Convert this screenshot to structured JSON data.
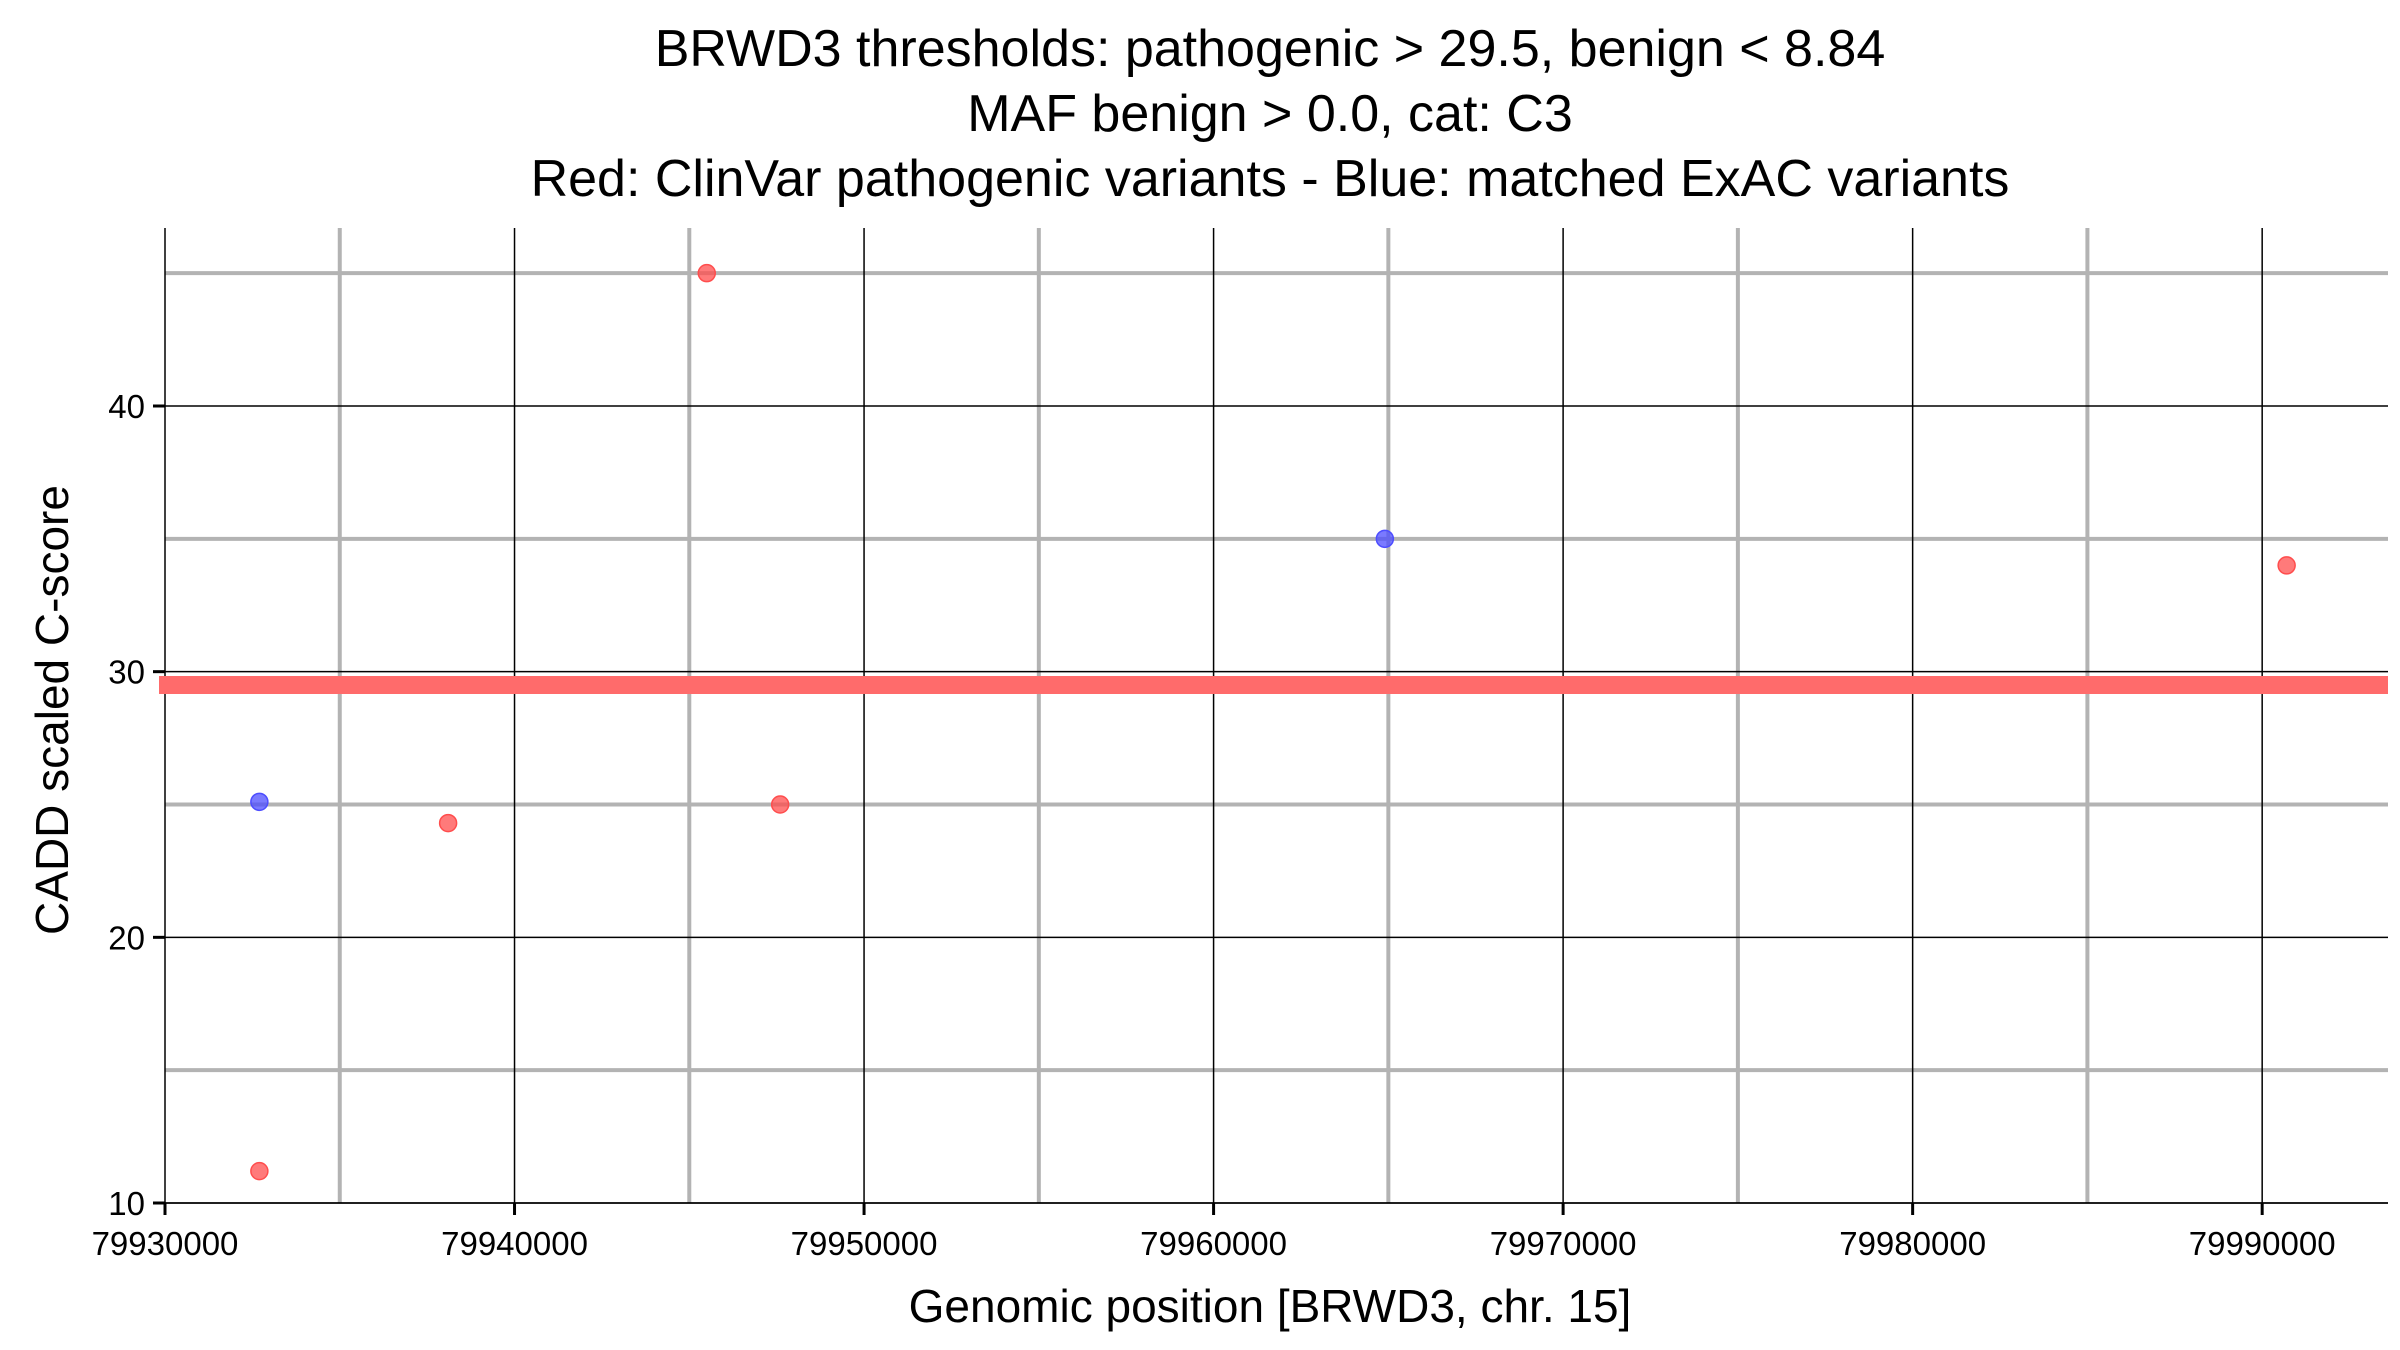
{
  "chart_data": {
    "type": "scatter",
    "title_lines": [
      "BRWD3 thresholds: pathogenic > 29.5, benign < 8.84",
      "MAF benign > 0.0, cat: C3",
      "Red: ClinVar pathogenic variants - Blue: matched ExAC variants"
    ],
    "xlabel": "Genomic position [BRWD3, chr. 15]",
    "ylabel": "CADD scaled C-score",
    "xlim": [
      79930000,
      79993600
    ],
    "ylim": [
      10,
      46.7
    ],
    "x_ticks": [
      79930000,
      79940000,
      79950000,
      79960000,
      79970000,
      79980000,
      79990000
    ],
    "x_tick_labels": [
      "79930000",
      "79940000",
      "79950000",
      "79960000",
      "79970000",
      "79980000",
      "79990000"
    ],
    "x_minor_ticks": [
      79935000,
      79945000,
      79955000,
      79965000,
      79975000,
      79985000
    ],
    "y_ticks": [
      10,
      20,
      30,
      40
    ],
    "y_tick_labels": [
      "10",
      "20",
      "30",
      "40"
    ],
    "y_minor_ticks": [
      15,
      25,
      35,
      45
    ],
    "grid": true,
    "threshold": {
      "y": 29.5,
      "color": "#ff6b6b"
    },
    "series": [
      {
        "color": "#ff4d4d",
        "points": [
          {
            "x": 79932700,
            "y": 11.2
          },
          {
            "x": 79938100,
            "y": 24.3
          },
          {
            "x": 79945500,
            "y": 45.0
          },
          {
            "x": 79947600,
            "y": 25.0
          },
          {
            "x": 79990700,
            "y": 34.0
          }
        ]
      },
      {
        "color": "#4d4dff",
        "points": [
          {
            "x": 79932700,
            "y": 25.1
          },
          {
            "x": 79964900,
            "y": 35.0
          }
        ]
      }
    ]
  }
}
